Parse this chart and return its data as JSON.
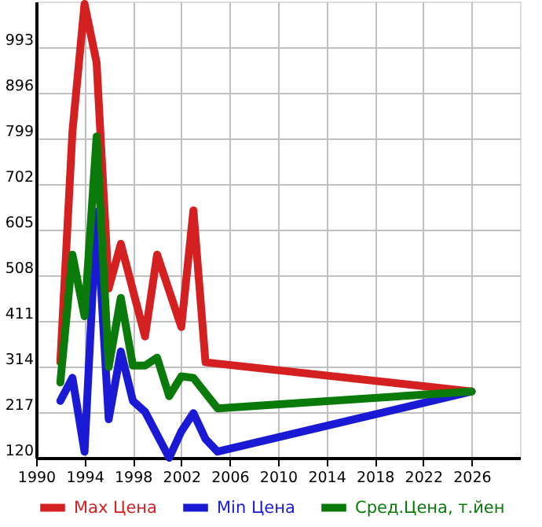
{
  "chart_data": {
    "type": "line",
    "xlim": [
      1990,
      2030
    ],
    "xticks": [
      1990,
      1994,
      1998,
      2002,
      2006,
      2010,
      2014,
      2018,
      2022,
      2026
    ],
    "ylim": [
      120,
      1090
    ],
    "yticks": [
      120,
      217,
      314,
      411,
      508,
      605,
      702,
      799,
      896,
      993
    ],
    "grid": true,
    "legend": "bottom",
    "marker": "none",
    "line_style": "solid",
    "series": [
      {
        "name": "Max Цена",
        "color": "#d42020",
        "x": [
          1992,
          1993,
          1994,
          1995,
          1996,
          1997,
          1999,
          2000,
          2002,
          2003,
          2004,
          2026
        ],
        "values": [
          323,
          813,
          1085,
          960,
          480,
          575,
          378,
          552,
          398,
          646,
          323,
          261
        ]
      },
      {
        "name": "Min Цена",
        "color": "#1a1ad4",
        "x": [
          1992,
          1993,
          1994,
          1995,
          1996,
          1997,
          1998,
          1999,
          2001,
          2002,
          2003,
          2004,
          2005,
          2026
        ],
        "values": [
          241,
          290,
          133,
          643,
          202,
          346,
          241,
          218,
          120,
          176,
          215,
          160,
          133,
          261
        ]
      },
      {
        "name": "Сред.Цена, т.йен",
        "color": "#0a7a0a",
        "x": [
          1992,
          1993,
          1994,
          1995,
          1996,
          1997,
          1998,
          1999,
          2000,
          2001,
          2002,
          2003,
          2005,
          2026
        ],
        "values": [
          280,
          552,
          421,
          803,
          313,
          460,
          316,
          316,
          333,
          251,
          293,
          290,
          225,
          261
        ]
      }
    ]
  }
}
